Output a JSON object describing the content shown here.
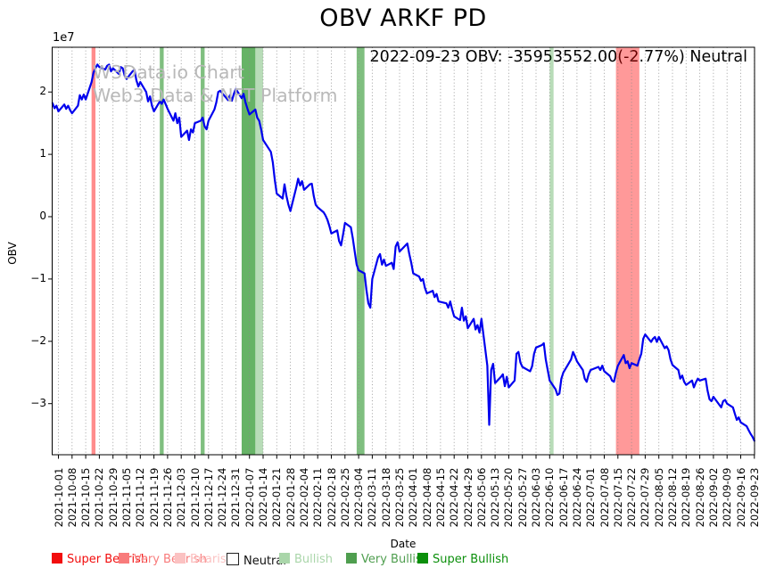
{
  "figure": {
    "title": "OBV ARKF PD",
    "annotation": "2022-09-23 OBV: -35953552.00(-2.77%) Neutral"
  },
  "watermark": {
    "line1": "W3Data.io Chart",
    "line2": "Web3 Data & NFT Platform"
  },
  "axes": {
    "xlabel": "Date",
    "ylabel": "OBV",
    "offset_text": "1e7"
  },
  "legend": {
    "items": [
      {
        "label": "Super Bearish",
        "swatch": "#f20d0d",
        "text_color": "#f20d0d",
        "outlined": false
      },
      {
        "label": "Very Bearish",
        "swatch": "#f87b7b",
        "text_color": "#f87b7b",
        "outlined": false
      },
      {
        "label": "Bearish",
        "swatch": "#fbc2c2",
        "text_color": "#fbc2c2",
        "outlined": false
      },
      {
        "label": "Neutral",
        "swatch": "#ffffff",
        "text_color": "#111111",
        "outlined": true
      },
      {
        "label": "Bullish",
        "swatch": "#aad6aa",
        "text_color": "#aad6aa",
        "outlined": false
      },
      {
        "label": "Very Bullish",
        "swatch": "#4f9e4f",
        "text_color": "#4f9e4f",
        "outlined": false
      },
      {
        "label": "Super Bullish",
        "swatch": "#0b8f0b",
        "text_color": "#0b8f0b",
        "outlined": false
      }
    ]
  },
  "chart_data": {
    "type": "line",
    "title": "OBV ARKF PD",
    "xlabel": "Date",
    "ylabel": "OBV",
    "value_unit": 10000000,
    "ylim_unit_1e7": [
      -3.82,
      2.72
    ],
    "grid": "vertical-dotted",
    "line_color": "#0000ee",
    "yticks": [
      {
        "v": 2,
        "label": "2"
      },
      {
        "v": 1,
        "label": "1"
      },
      {
        "v": 0,
        "label": "0"
      },
      {
        "v": -1,
        "label": "−1"
      },
      {
        "v": -2,
        "label": "−2"
      },
      {
        "v": -3,
        "label": "−3"
      }
    ],
    "xtick_labels": [
      "2021-10-01",
      "2021-10-08",
      "2021-10-15",
      "2021-10-22",
      "2021-10-29",
      "2021-11-05",
      "2021-11-12",
      "2021-11-19",
      "2021-11-26",
      "2021-12-03",
      "2021-12-10",
      "2021-12-17",
      "2021-12-24",
      "2021-12-31",
      "2022-01-07",
      "2022-01-14",
      "2022-01-21",
      "2022-01-28",
      "2022-02-04",
      "2022-02-11",
      "2022-02-18",
      "2022-02-25",
      "2022-03-04",
      "2022-03-11",
      "2022-03-18",
      "2022-03-25",
      "2022-04-01",
      "2022-04-08",
      "2022-04-15",
      "2022-04-22",
      "2022-04-29",
      "2022-05-06",
      "2022-05-13",
      "2022-05-20",
      "2022-05-27",
      "2022-06-03",
      "2022-06-10",
      "2022-06-17",
      "2022-06-24",
      "2022-07-01",
      "2022-07-08",
      "2022-07-15",
      "2022-07-22",
      "2022-07-29",
      "2022-08-05",
      "2022-08-12",
      "2022-08-19",
      "2022-08-26",
      "2022-09-02",
      "2022-09-09",
      "2022-09-16",
      "2022-09-23"
    ],
    "last_point": {
      "date": "2022-09-23",
      "obv": -35953552.0,
      "change_pct": -2.77,
      "signal": "Neutral"
    },
    "bands": [
      {
        "start": "2021-10-18",
        "end": "2021-10-20",
        "label": "Very Bearish",
        "color": "rgba(255,0,0,0.45)"
      },
      {
        "start": "2021-11-22",
        "end": "2021-11-24",
        "label": "Very Bullish",
        "color": "rgba(0,128,0,0.5)"
      },
      {
        "start": "2021-12-13",
        "end": "2021-12-15",
        "label": "Very Bullish",
        "color": "rgba(0,128,0,0.5)"
      },
      {
        "start": "2022-01-03",
        "end": "2022-01-10",
        "label": "Very Bullish",
        "color": "rgba(0,128,0,0.6)"
      },
      {
        "start": "2022-01-10",
        "end": "2022-01-14",
        "label": "Bullish",
        "color": "rgba(0,128,0,0.28)"
      },
      {
        "start": "2022-03-03",
        "end": "2022-03-07",
        "label": "Very Bullish",
        "color": "rgba(0,128,0,0.5)"
      },
      {
        "start": "2022-06-10",
        "end": "2022-06-12",
        "label": "Bullish",
        "color": "rgba(0,128,0,0.28)"
      },
      {
        "start": "2022-07-14",
        "end": "2022-07-26",
        "label": "Very Bearish",
        "color": "rgba(255,0,0,0.4)"
      }
    ],
    "series": {
      "name": "OBV",
      "points_unit_1e7": [
        [
          "2021-09-28",
          1.82
        ],
        [
          "2021-09-29",
          1.74
        ],
        [
          "2021-09-30",
          1.78
        ],
        [
          "2021-10-01",
          1.69
        ],
        [
          "2021-10-04",
          1.8
        ],
        [
          "2021-10-05",
          1.73
        ],
        [
          "2021-10-06",
          1.78
        ],
        [
          "2021-10-07",
          1.71
        ],
        [
          "2021-10-08",
          1.66
        ],
        [
          "2021-10-11",
          1.78
        ],
        [
          "2021-10-12",
          1.95
        ],
        [
          "2021-10-13",
          1.88
        ],
        [
          "2021-10-14",
          1.96
        ],
        [
          "2021-10-15",
          1.88
        ],
        [
          "2021-10-18",
          2.16
        ],
        [
          "2021-10-19",
          2.31
        ],
        [
          "2021-10-20",
          2.38
        ],
        [
          "2021-10-21",
          2.44
        ],
        [
          "2021-10-22",
          2.4
        ],
        [
          "2021-10-25",
          2.36
        ],
        [
          "2021-10-26",
          2.42
        ],
        [
          "2021-10-27",
          2.44
        ],
        [
          "2021-10-28",
          2.33
        ],
        [
          "2021-10-29",
          2.38
        ],
        [
          "2021-11-01",
          2.29
        ],
        [
          "2021-11-02",
          2.4
        ],
        [
          "2021-11-03",
          2.38
        ],
        [
          "2021-11-04",
          2.26
        ],
        [
          "2021-11-05",
          2.21
        ],
        [
          "2021-11-08",
          2.33
        ],
        [
          "2021-11-09",
          2.36
        ],
        [
          "2021-11-10",
          2.19
        ],
        [
          "2021-11-11",
          2.09
        ],
        [
          "2021-11-12",
          2.16
        ],
        [
          "2021-11-15",
          2.0
        ],
        [
          "2021-11-16",
          1.85
        ],
        [
          "2021-11-17",
          1.93
        ],
        [
          "2021-11-18",
          1.78
        ],
        [
          "2021-11-19",
          1.69
        ],
        [
          "2021-11-22",
          1.85
        ],
        [
          "2021-11-23",
          1.81
        ],
        [
          "2021-11-24",
          1.88
        ],
        [
          "2021-11-26",
          1.73
        ],
        [
          "2021-11-29",
          1.54
        ],
        [
          "2021-11-30",
          1.66
        ],
        [
          "2021-12-01",
          1.5
        ],
        [
          "2021-12-02",
          1.59
        ],
        [
          "2021-12-03",
          1.28
        ],
        [
          "2021-12-06",
          1.38
        ],
        [
          "2021-12-07",
          1.23
        ],
        [
          "2021-12-08",
          1.4
        ],
        [
          "2021-12-09",
          1.35
        ],
        [
          "2021-12-10",
          1.5
        ],
        [
          "2021-12-13",
          1.54
        ],
        [
          "2021-12-14",
          1.59
        ],
        [
          "2021-12-15",
          1.45
        ],
        [
          "2021-12-16",
          1.4
        ],
        [
          "2021-12-17",
          1.54
        ],
        [
          "2021-12-20",
          1.72
        ],
        [
          "2021-12-21",
          1.83
        ],
        [
          "2021-12-22",
          2.0
        ],
        [
          "2021-12-23",
          2.02
        ],
        [
          "2021-12-27",
          1.87
        ],
        [
          "2021-12-28",
          1.95
        ],
        [
          "2021-12-29",
          1.86
        ],
        [
          "2021-12-30",
          1.97
        ],
        [
          "2021-12-31",
          2.05
        ],
        [
          "2022-01-03",
          1.9
        ],
        [
          "2022-01-04",
          1.97
        ],
        [
          "2022-01-05",
          1.83
        ],
        [
          "2022-01-06",
          1.73
        ],
        [
          "2022-01-07",
          1.64
        ],
        [
          "2022-01-10",
          1.72
        ],
        [
          "2022-01-11",
          1.59
        ],
        [
          "2022-01-12",
          1.54
        ],
        [
          "2022-01-13",
          1.4
        ],
        [
          "2022-01-14",
          1.23
        ],
        [
          "2022-01-18",
          1.04
        ],
        [
          "2022-01-19",
          0.87
        ],
        [
          "2022-01-20",
          0.59
        ],
        [
          "2022-01-21",
          0.37
        ],
        [
          "2022-01-24",
          0.29
        ],
        [
          "2022-01-25",
          0.52
        ],
        [
          "2022-01-26",
          0.33
        ],
        [
          "2022-01-27",
          0.19
        ],
        [
          "2022-01-28",
          0.09
        ],
        [
          "2022-01-31",
          0.47
        ],
        [
          "2022-02-01",
          0.61
        ],
        [
          "2022-02-02",
          0.5
        ],
        [
          "2022-02-03",
          0.57
        ],
        [
          "2022-02-04",
          0.43
        ],
        [
          "2022-02-07",
          0.52
        ],
        [
          "2022-02-08",
          0.53
        ],
        [
          "2022-02-09",
          0.33
        ],
        [
          "2022-02-10",
          0.19
        ],
        [
          "2022-02-11",
          0.15
        ],
        [
          "2022-02-14",
          0.07
        ],
        [
          "2022-02-15",
          0.02
        ],
        [
          "2022-02-16",
          -0.05
        ],
        [
          "2022-02-17",
          -0.15
        ],
        [
          "2022-02-18",
          -0.27
        ],
        [
          "2022-02-21",
          -0.22
        ],
        [
          "2022-02-22",
          -0.39
        ],
        [
          "2022-02-23",
          -0.46
        ],
        [
          "2022-02-24",
          -0.29
        ],
        [
          "2022-02-25",
          -0.1
        ],
        [
          "2022-02-28",
          -0.17
        ],
        [
          "2022-03-01",
          -0.34
        ],
        [
          "2022-03-02",
          -0.56
        ],
        [
          "2022-03-03",
          -0.77
        ],
        [
          "2022-03-04",
          -0.86
        ],
        [
          "2022-03-07",
          -0.91
        ],
        [
          "2022-03-08",
          -1.17
        ],
        [
          "2022-03-09",
          -1.39
        ],
        [
          "2022-03-10",
          -1.46
        ],
        [
          "2022-03-11",
          -1.0
        ],
        [
          "2022-03-14",
          -0.65
        ],
        [
          "2022-03-15",
          -0.6
        ],
        [
          "2022-03-16",
          -0.77
        ],
        [
          "2022-03-17",
          -0.69
        ],
        [
          "2022-03-18",
          -0.79
        ],
        [
          "2022-03-21",
          -0.74
        ],
        [
          "2022-03-22",
          -0.84
        ],
        [
          "2022-03-23",
          -0.48
        ],
        [
          "2022-03-24",
          -0.41
        ],
        [
          "2022-03-25",
          -0.56
        ],
        [
          "2022-03-28",
          -0.46
        ],
        [
          "2022-03-29",
          -0.43
        ],
        [
          "2022-03-30",
          -0.6
        ],
        [
          "2022-03-31",
          -0.74
        ],
        [
          "2022-04-01",
          -0.91
        ],
        [
          "2022-04-04",
          -0.96
        ],
        [
          "2022-04-05",
          -1.03
        ],
        [
          "2022-04-06",
          -1.0
        ],
        [
          "2022-04-07",
          -1.14
        ],
        [
          "2022-04-08",
          -1.23
        ],
        [
          "2022-04-11",
          -1.19
        ],
        [
          "2022-04-12",
          -1.29
        ],
        [
          "2022-04-13",
          -1.24
        ],
        [
          "2022-04-14",
          -1.36
        ],
        [
          "2022-04-18",
          -1.39
        ],
        [
          "2022-04-19",
          -1.46
        ],
        [
          "2022-04-20",
          -1.36
        ],
        [
          "2022-04-21",
          -1.49
        ],
        [
          "2022-04-22",
          -1.6
        ],
        [
          "2022-04-25",
          -1.66
        ],
        [
          "2022-04-26",
          -1.46
        ],
        [
          "2022-04-27",
          -1.67
        ],
        [
          "2022-04-28",
          -1.6
        ],
        [
          "2022-04-29",
          -1.79
        ],
        [
          "2022-05-02",
          -1.64
        ],
        [
          "2022-05-03",
          -1.81
        ],
        [
          "2022-05-04",
          -1.74
        ],
        [
          "2022-05-05",
          -1.86
        ],
        [
          "2022-05-06",
          -1.64
        ],
        [
          "2022-05-09",
          -2.39
        ],
        [
          "2022-05-10",
          -3.34
        ],
        [
          "2022-05-11",
          -2.46
        ],
        [
          "2022-05-12",
          -2.36
        ],
        [
          "2022-05-13",
          -2.67
        ],
        [
          "2022-05-16",
          -2.57
        ],
        [
          "2022-05-17",
          -2.53
        ],
        [
          "2022-05-18",
          -2.72
        ],
        [
          "2022-05-19",
          -2.57
        ],
        [
          "2022-05-20",
          -2.74
        ],
        [
          "2022-05-23",
          -2.63
        ],
        [
          "2022-05-24",
          -2.2
        ],
        [
          "2022-05-25",
          -2.17
        ],
        [
          "2022-05-26",
          -2.34
        ],
        [
          "2022-05-27",
          -2.41
        ],
        [
          "2022-05-31",
          -2.48
        ],
        [
          "2022-06-01",
          -2.4
        ],
        [
          "2022-06-02",
          -2.2
        ],
        [
          "2022-06-03",
          -2.1
        ],
        [
          "2022-06-06",
          -2.06
        ],
        [
          "2022-06-07",
          -2.03
        ],
        [
          "2022-06-08",
          -2.29
        ],
        [
          "2022-06-09",
          -2.46
        ],
        [
          "2022-06-10",
          -2.63
        ],
        [
          "2022-06-13",
          -2.77
        ],
        [
          "2022-06-14",
          -2.86
        ],
        [
          "2022-06-15",
          -2.84
        ],
        [
          "2022-06-16",
          -2.6
        ],
        [
          "2022-06-17",
          -2.5
        ],
        [
          "2022-06-21",
          -2.29
        ],
        [
          "2022-06-22",
          -2.17
        ],
        [
          "2022-06-23",
          -2.24
        ],
        [
          "2022-06-24",
          -2.32
        ],
        [
          "2022-06-27",
          -2.46
        ],
        [
          "2022-06-28",
          -2.6
        ],
        [
          "2022-06-29",
          -2.65
        ],
        [
          "2022-06-30",
          -2.53
        ],
        [
          "2022-07-01",
          -2.46
        ],
        [
          "2022-07-05",
          -2.41
        ],
        [
          "2022-07-06",
          -2.46
        ],
        [
          "2022-07-07",
          -2.39
        ],
        [
          "2022-07-08",
          -2.48
        ],
        [
          "2022-07-11",
          -2.56
        ],
        [
          "2022-07-12",
          -2.63
        ],
        [
          "2022-07-13",
          -2.65
        ],
        [
          "2022-07-14",
          -2.5
        ],
        [
          "2022-07-15",
          -2.39
        ],
        [
          "2022-07-18",
          -2.22
        ],
        [
          "2022-07-19",
          -2.35
        ],
        [
          "2022-07-20",
          -2.32
        ],
        [
          "2022-07-21",
          -2.43
        ],
        [
          "2022-07-22",
          -2.35
        ],
        [
          "2022-07-25",
          -2.39
        ],
        [
          "2022-07-26",
          -2.29
        ],
        [
          "2022-07-27",
          -2.2
        ],
        [
          "2022-07-28",
          -1.96
        ],
        [
          "2022-07-29",
          -1.89
        ],
        [
          "2022-08-01",
          -2.01
        ],
        [
          "2022-08-02",
          -1.96
        ],
        [
          "2022-08-03",
          -1.93
        ],
        [
          "2022-08-04",
          -2.01
        ],
        [
          "2022-08-05",
          -1.93
        ],
        [
          "2022-08-08",
          -2.11
        ],
        [
          "2022-08-09",
          -2.08
        ],
        [
          "2022-08-10",
          -2.14
        ],
        [
          "2022-08-11",
          -2.29
        ],
        [
          "2022-08-12",
          -2.38
        ],
        [
          "2022-08-15",
          -2.46
        ],
        [
          "2022-08-16",
          -2.6
        ],
        [
          "2022-08-17",
          -2.55
        ],
        [
          "2022-08-18",
          -2.65
        ],
        [
          "2022-08-19",
          -2.7
        ],
        [
          "2022-08-22",
          -2.63
        ],
        [
          "2022-08-23",
          -2.74
        ],
        [
          "2022-08-24",
          -2.66
        ],
        [
          "2022-08-25",
          -2.6
        ],
        [
          "2022-08-26",
          -2.63
        ],
        [
          "2022-08-29",
          -2.6
        ],
        [
          "2022-08-30",
          -2.79
        ],
        [
          "2022-08-31",
          -2.93
        ],
        [
          "2022-09-01",
          -2.96
        ],
        [
          "2022-09-02",
          -2.89
        ],
        [
          "2022-09-06",
          -3.06
        ],
        [
          "2022-09-07",
          -2.96
        ],
        [
          "2022-09-08",
          -2.94
        ],
        [
          "2022-09-09",
          -3.0
        ],
        [
          "2022-09-12",
          -3.06
        ],
        [
          "2022-09-13",
          -3.16
        ],
        [
          "2022-09-14",
          -3.26
        ],
        [
          "2022-09-15",
          -3.22
        ],
        [
          "2022-09-16",
          -3.3
        ],
        [
          "2022-09-19",
          -3.36
        ],
        [
          "2022-09-20",
          -3.42
        ],
        [
          "2022-09-21",
          -3.48
        ],
        [
          "2022-09-22",
          -3.53
        ],
        [
          "2022-09-23",
          -3.5954
        ]
      ]
    }
  }
}
